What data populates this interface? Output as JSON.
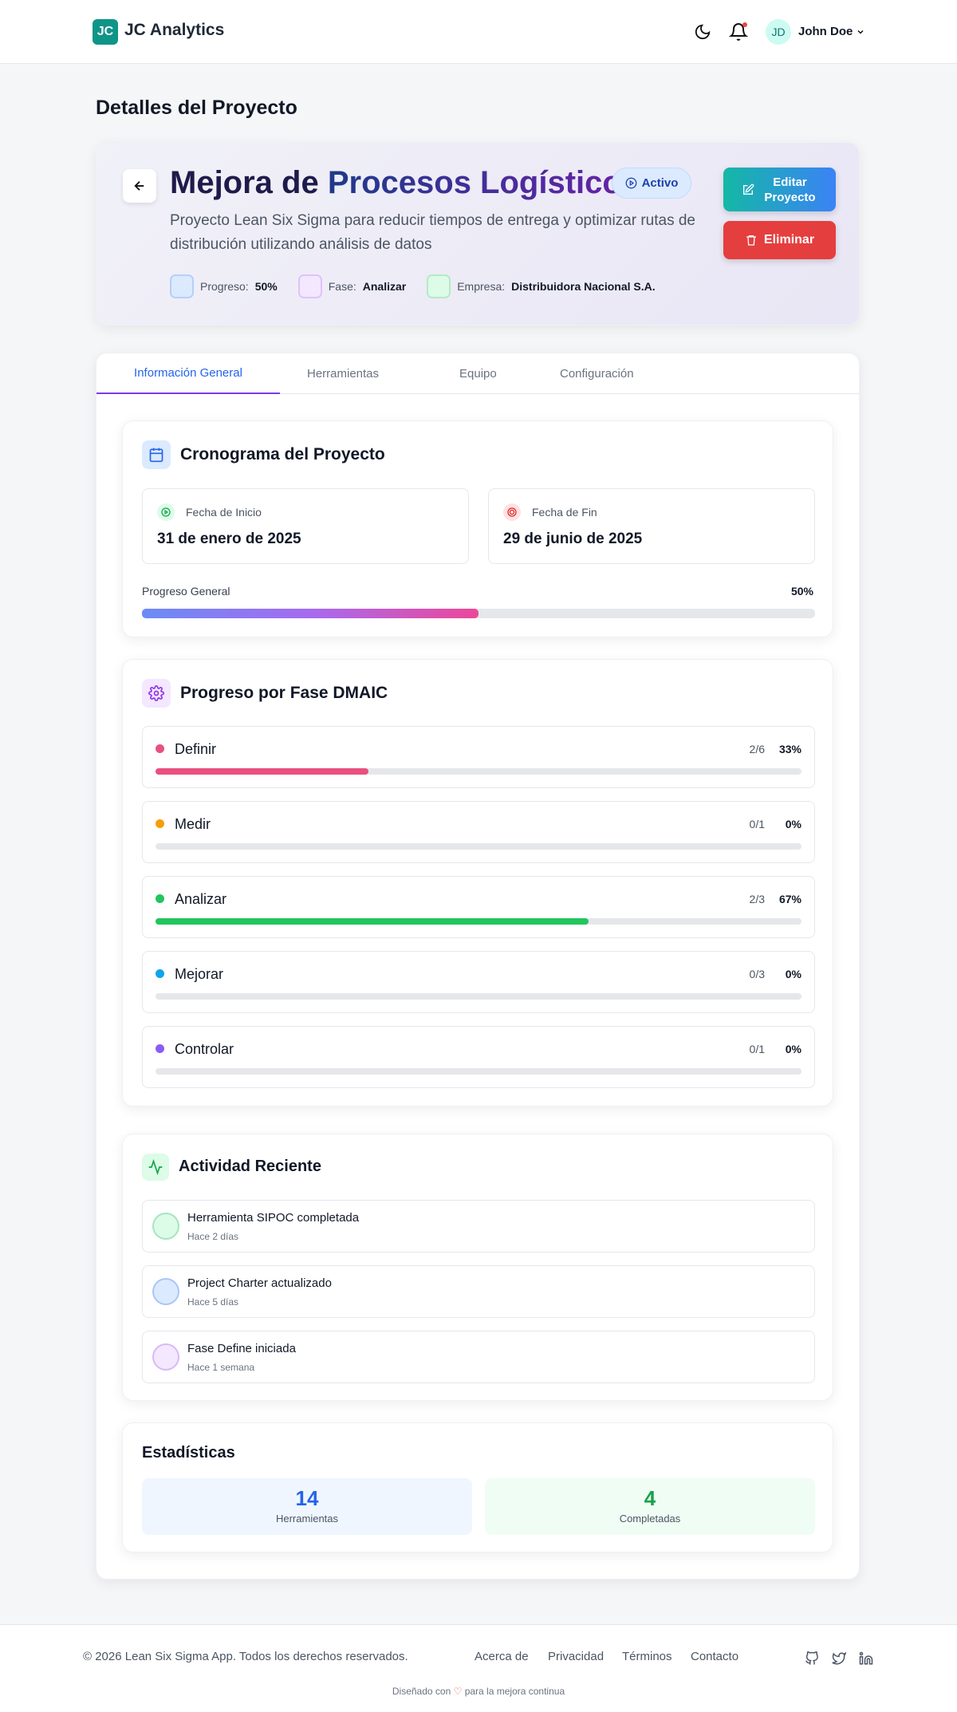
{
  "header": {
    "logo": "JC",
    "brand": "JC Analytics",
    "user_initials": "JD",
    "user_name": "John Doe"
  },
  "page_title": "Detalles del Proyecto",
  "project": {
    "title_1": "Mejora de",
    "title_2": "Procesos Logísticos",
    "status": "Activo",
    "description": "Proyecto Lean Six Sigma para reducir tiempos de entrega y optimizar rutas de distribución utilizando análisis de datos",
    "edit": "Editar Proyecto",
    "delete": "Eliminar",
    "meta": [
      {
        "label": "Progreso:",
        "value": "50%"
      },
      {
        "label": "Fase:",
        "value": "Analizar"
      },
      {
        "label": "Empresa:",
        "value": "Distribuidora Nacional S.A."
      }
    ]
  },
  "tabs": [
    "Información General",
    "Herramientas",
    "Equipo",
    "Configuración"
  ],
  "timeline": {
    "title": "Cronograma del Proyecto",
    "start_label": "Fecha de Inicio",
    "start": "31 de enero de 2025",
    "end_label": "Fecha de Fin",
    "end": "29 de junio de 2025",
    "progress_label": "Progreso General",
    "progress": {
      "value": 50,
      "label": "50%"
    }
  },
  "phases": {
    "title": "Progreso por Fase DMAIC",
    "items": [
      {
        "name": "Definir",
        "color": "#e9507f",
        "count": "2/6",
        "percent": {
          "value": 33,
          "label": "33%"
        }
      },
      {
        "name": "Medir",
        "color": "#f59e0b",
        "count": "0/1",
        "percent": {
          "value": 0,
          "label": "0%"
        }
      },
      {
        "name": "Analizar",
        "color": "#22c55e",
        "count": "2/3",
        "percent": {
          "value": 67,
          "label": "67%"
        }
      },
      {
        "name": "Mejorar",
        "color": "#0ea5e9",
        "count": "0/3",
        "percent": {
          "value": 0,
          "label": "0%"
        }
      },
      {
        "name": "Controlar",
        "color": "#8b5cf6",
        "count": "0/1",
        "percent": {
          "value": 0,
          "label": "0%"
        }
      }
    ]
  },
  "activity": {
    "title": "Actividad Reciente",
    "items": [
      {
        "text": "Herramienta SIPOC completada",
        "time": "Hace 2 días"
      },
      {
        "text": "Project Charter actualizado",
        "time": "Hace 5 días"
      },
      {
        "text": "Fase Define iniciada",
        "time": "Hace 1 semana"
      }
    ]
  },
  "stats": {
    "title": "Estadísticas",
    "items": [
      {
        "value": 14,
        "label": "Herramientas"
      },
      {
        "value": 4,
        "label": "Completadas"
      }
    ]
  },
  "footer": {
    "copyright": "© 2026 Lean Six Sigma App. Todos los derechos reservados.",
    "links": [
      "Acerca de",
      "Privacidad",
      "Términos",
      "Contacto"
    ],
    "credit_1": "Diseñado con",
    "credit_2": "para la mejora continua"
  }
}
